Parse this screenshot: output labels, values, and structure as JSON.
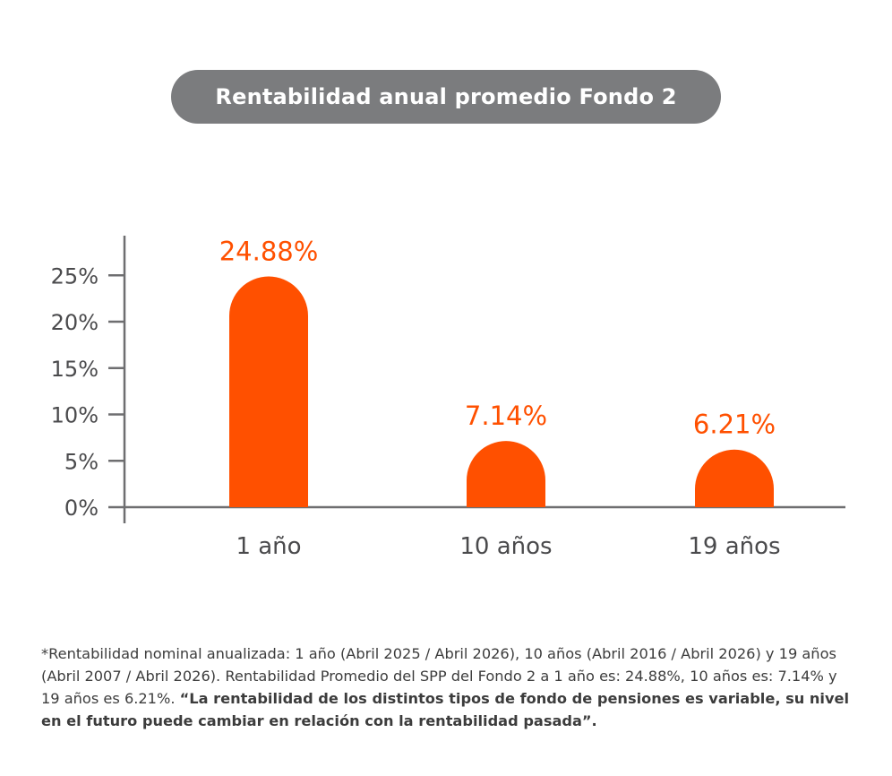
{
  "title": "Rentabilidad anual promedio Fondo 2",
  "chart_data": {
    "type": "bar",
    "categories": [
      "1 año",
      "10 años",
      "19 años"
    ],
    "values": [
      24.88,
      7.14,
      6.21
    ],
    "data_labels": [
      "24.88%",
      "7.14%",
      "6.21%"
    ],
    "y_ticks": [
      "0%",
      "5%",
      "10%",
      "15%",
      "20%",
      "25%"
    ],
    "ylim": [
      0,
      25
    ],
    "title": "Rentabilidad anual promedio Fondo 2",
    "xlabel": "",
    "ylabel": "",
    "grid": false,
    "bar_color": "#ff5000",
    "label_color": "#ff5000",
    "axis_color": "#6e6e70"
  },
  "footnote": {
    "regular": "*Rentabilidad nominal anualizada: 1 año (Abril 2025 / Abril 2026), 10 años (Abril 2016 / Abril 2026) y 19 años (Abril 2007 / Abril 2026). Rentabilidad Promedio del SPP del Fondo 2 a 1 año es: 24.88%, 10 años es: 7.14% y 19 años es 6.21%. ",
    "bold": "“La rentabilidad de los distintos tipos de fondo de pensiones es variable, su nivel en el futuro puede cambiar en relación con la rentabilidad pasada”."
  }
}
